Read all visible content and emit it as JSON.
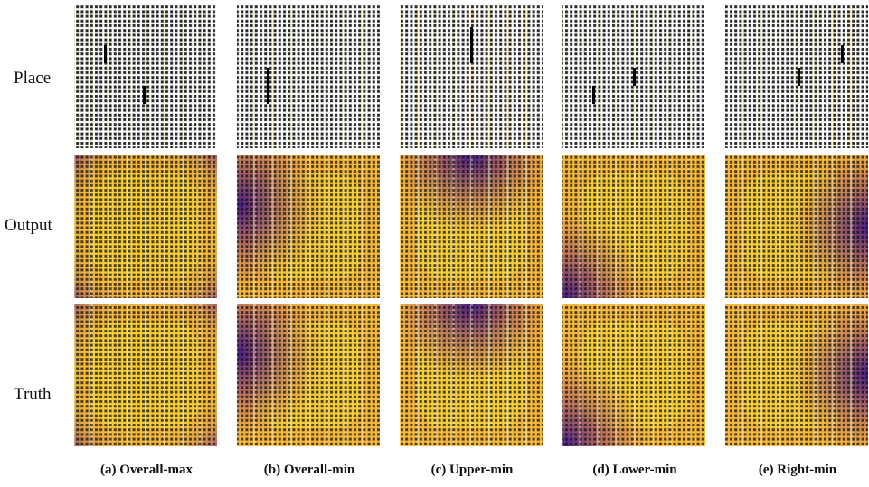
{
  "rows": [
    "Place",
    "Output",
    "Truth"
  ],
  "captions": [
    "(a) Overall-max",
    "(b) Overall-min",
    "(c) Upper-min",
    "(d) Lower-min",
    "(e) Right-min"
  ]
}
